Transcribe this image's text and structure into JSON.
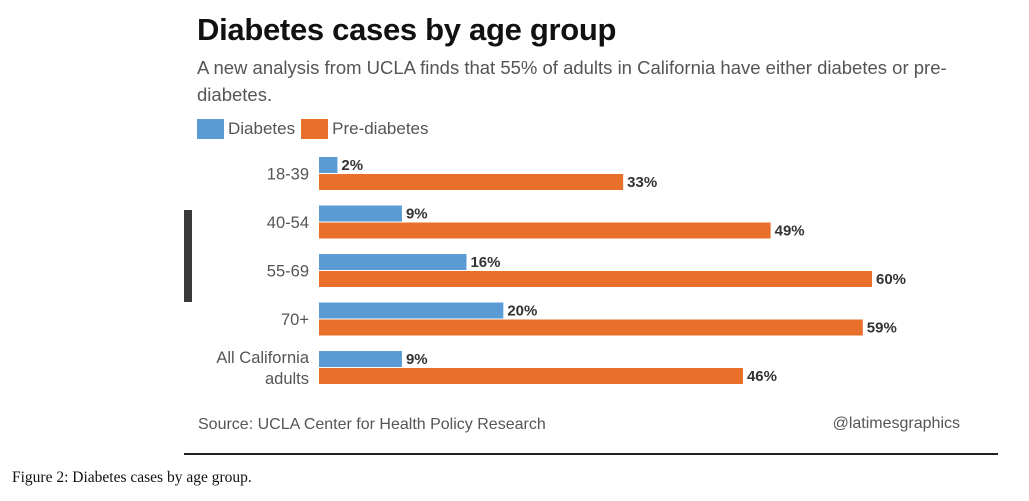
{
  "chart_data": {
    "type": "bar",
    "orientation": "horizontal",
    "title": "Diabetes cases by age group",
    "subtitle": "A new analysis from UCLA finds that 55% of adults in California have either diabetes or pre-diabetes.",
    "categories": [
      "18-39",
      "40-54",
      "55-69",
      "70+",
      "All California adults"
    ],
    "category_lines": [
      [
        "18-39"
      ],
      [
        "40-54"
      ],
      [
        "55-69"
      ],
      [
        "70+"
      ],
      [
        "All California",
        "adults"
      ]
    ],
    "series": [
      {
        "name": "Diabetes",
        "color": "#5b9bd5",
        "values": [
          2,
          9,
          16,
          20,
          9
        ]
      },
      {
        "name": "Pre-diabetes",
        "color": "#e8702a",
        "values": [
          33,
          49,
          60,
          59,
          46
        ]
      }
    ],
    "value_suffix": "%",
    "xlim": [
      0,
      60
    ],
    "grid": false,
    "legend_position": "top-left",
    "source": "Source: UCLA Center for Health Policy Research",
    "credit": "@latimesgraphics"
  },
  "caption": {
    "label": "Figure 2:",
    "text": " Diabetes cases by age group."
  }
}
